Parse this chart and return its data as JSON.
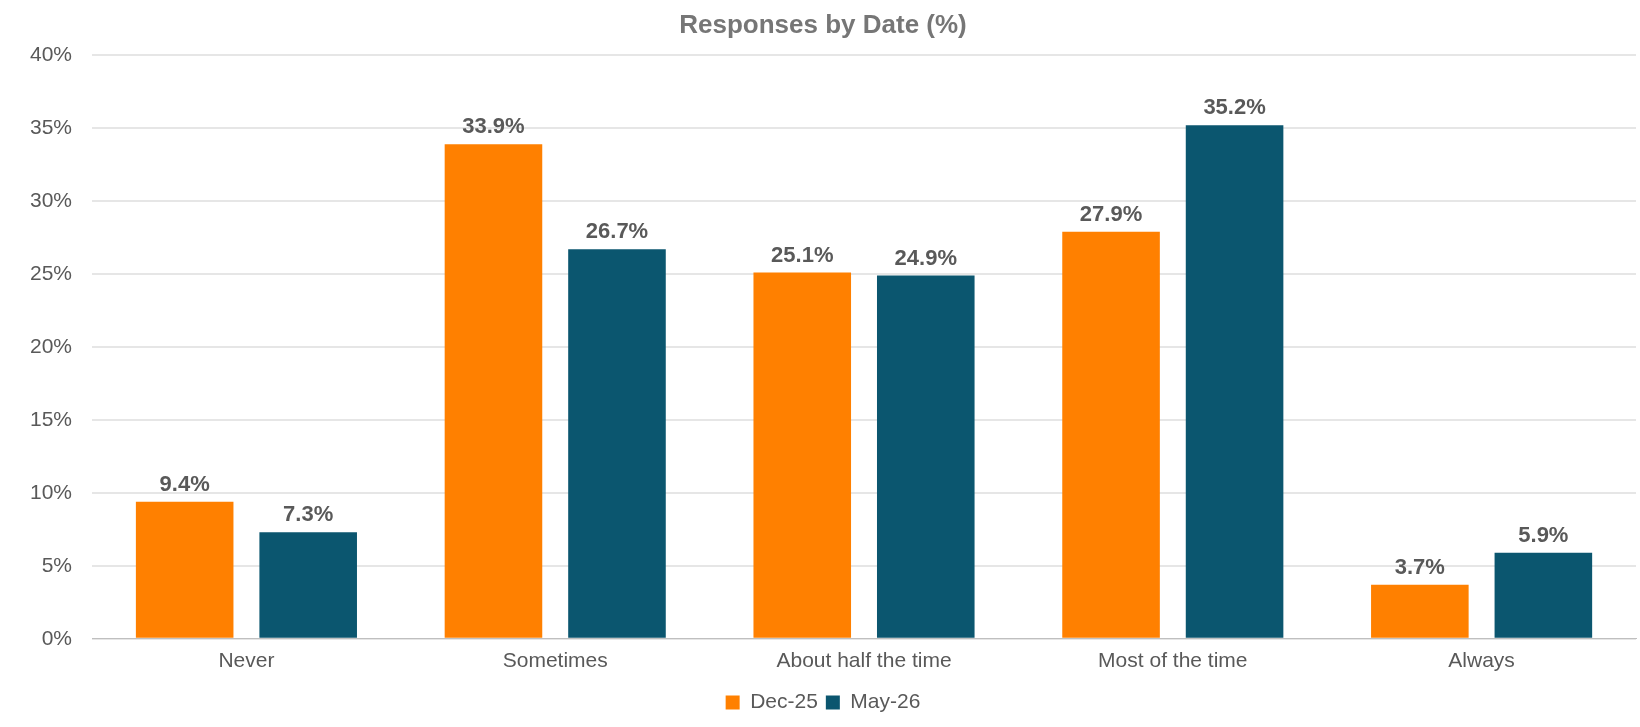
{
  "chart_data": {
    "type": "bar",
    "title": "Responses by Date (%)",
    "categories": [
      "Never",
      "Sometimes",
      "About half the time",
      "Most of the time",
      "Always"
    ],
    "series": [
      {
        "name": "Dec-25",
        "color": "#ff8000",
        "values": [
          9.4,
          33.9,
          25.1,
          27.9,
          3.7
        ],
        "value_labels": [
          "9.4%",
          "33.9%",
          "25.1%",
          "27.9%",
          "3.7%"
        ]
      },
      {
        "name": "May-26",
        "color": "#0b566f",
        "values": [
          7.3,
          26.7,
          24.9,
          35.2,
          5.9
        ],
        "value_labels": [
          "7.3%",
          "26.7%",
          "24.9%",
          "35.2%",
          "5.9%"
        ]
      }
    ],
    "ylim": [
      0,
      40
    ],
    "yticks": [
      {
        "value": 0,
        "label": "0%"
      },
      {
        "value": 5,
        "label": "5%"
      },
      {
        "value": 10,
        "label": "10%"
      },
      {
        "value": 15,
        "label": "15%"
      },
      {
        "value": 20,
        "label": "20%"
      },
      {
        "value": 25,
        "label": "25%"
      },
      {
        "value": 30,
        "label": "30%"
      },
      {
        "value": 35,
        "label": "35%"
      },
      {
        "value": 40,
        "label": "40%"
      }
    ],
    "grid": "y",
    "legend": "bottom"
  }
}
